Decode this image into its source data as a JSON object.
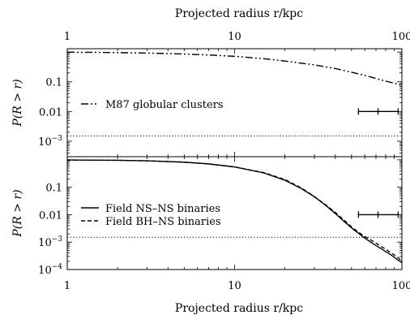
{
  "chart_data": [
    {
      "type": "line",
      "panel": "top",
      "xlabel_top": "Projected radius r/kpc",
      "x_scale": "log",
      "y_scale": "log",
      "xlim": [
        1,
        100
      ],
      "ylim": [
        0.0003,
        1.3
      ],
      "x_tick_labels": [
        {
          "v": 1,
          "t": "1"
        },
        {
          "v": 10,
          "t": "10"
        },
        {
          "v": 100,
          "t": "100"
        }
      ],
      "y_tick_labels": [
        {
          "v": 0.1,
          "t": "0.1"
        },
        {
          "v": 0.01,
          "t": "0.01"
        },
        {
          "v": 0.001,
          "t": "10−3"
        }
      ],
      "ylabel": "P(R > r)",
      "series": [
        {
          "name": "M87 globular clusters",
          "dash": "dash-dot-dot",
          "x": [
            1,
            1.5,
            2,
            3,
            5,
            7,
            10,
            15,
            20,
            30,
            40,
            50,
            60,
            70,
            80,
            90,
            100
          ],
          "y": [
            0.99,
            0.98,
            0.96,
            0.93,
            0.86,
            0.8,
            0.72,
            0.6,
            0.5,
            0.37,
            0.28,
            0.21,
            0.165,
            0.13,
            0.105,
            0.09,
            0.075
          ]
        }
      ],
      "reference_line": {
        "y": 0.0015,
        "style": "dotted"
      },
      "error_bar": {
        "x": 72,
        "y": 0.01,
        "xerr": [
          55,
          95
        ]
      },
      "legend": "left"
    },
    {
      "type": "line",
      "panel": "bottom",
      "xlabel": "Projected radius r/kpc",
      "x_scale": "log",
      "y_scale": "log",
      "xlim": [
        1,
        100
      ],
      "ylim": [
        0.0001,
        1.3
      ],
      "x_tick_labels": [
        {
          "v": 1,
          "t": "1"
        },
        {
          "v": 10,
          "t": "10"
        },
        {
          "v": 100,
          "t": "100"
        }
      ],
      "y_tick_labels": [
        {
          "v": 0.1,
          "t": "0.1"
        },
        {
          "v": 0.01,
          "t": "0.01"
        },
        {
          "v": 0.001,
          "t": "10−3"
        },
        {
          "v": 0.0001,
          "t": "10−4"
        }
      ],
      "ylabel": "P(R > r)",
      "series": [
        {
          "name": "Field NS–NS binaries",
          "dash": "solid",
          "x": [
            1,
            2,
            3,
            5,
            7,
            10,
            15,
            20,
            25,
            30,
            35,
            40,
            45,
            50,
            55,
            60,
            65,
            70,
            75,
            80,
            85,
            90,
            95,
            100
          ],
          "y": [
            0.985,
            0.96,
            0.92,
            0.82,
            0.71,
            0.55,
            0.33,
            0.18,
            0.09,
            0.045,
            0.022,
            0.011,
            0.0058,
            0.0033,
            0.0021,
            0.0014,
            0.001,
            0.00075,
            0.00058,
            0.00045,
            0.00036,
            0.00028,
            0.00022,
            0.00018
          ]
        },
        {
          "name": "Field BH–NS binaries",
          "dash": "dashed",
          "x": [
            1,
            2,
            3,
            5,
            7,
            10,
            15,
            20,
            25,
            30,
            35,
            40,
            45,
            50,
            55,
            60,
            65,
            70,
            75,
            80,
            85,
            90,
            95,
            100
          ],
          "y": [
            0.985,
            0.96,
            0.92,
            0.82,
            0.71,
            0.55,
            0.34,
            0.19,
            0.095,
            0.046,
            0.023,
            0.012,
            0.0064,
            0.0036,
            0.0023,
            0.0016,
            0.0012,
            0.00092,
            0.0007,
            0.00055,
            0.00043,
            0.00034,
            0.00027,
            0.0002
          ]
        }
      ],
      "reference_line": {
        "y": 0.0015,
        "style": "dotted"
      },
      "error_bar": {
        "x": 72,
        "y": 0.01,
        "xerr": [
          55,
          95
        ]
      },
      "legend": "left"
    }
  ]
}
